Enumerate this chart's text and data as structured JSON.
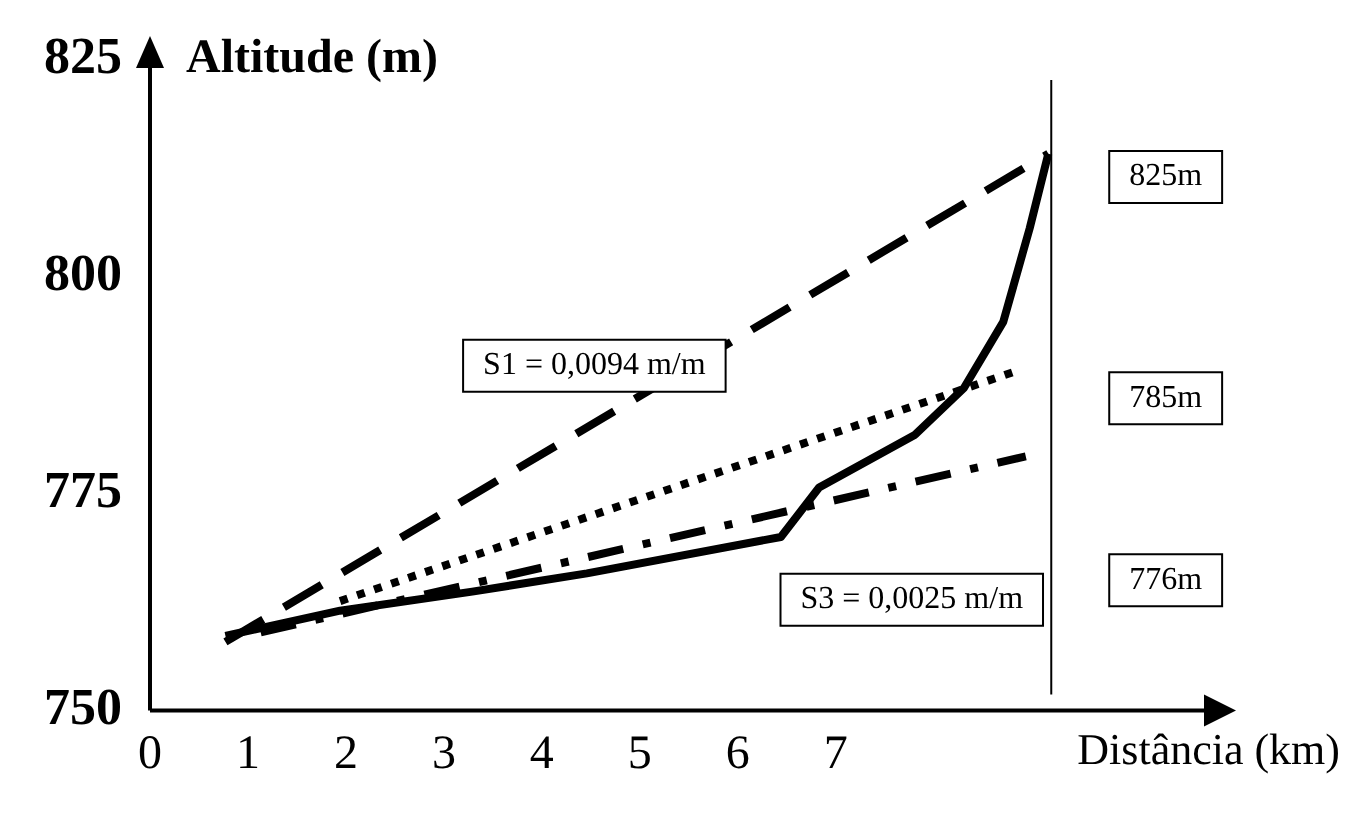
{
  "chart_data": {
    "type": "line",
    "xlabel": "Distância (km)",
    "ylabel": "Altitude (m)",
    "xlim": [
      0,
      10.8
    ],
    "xticks": [
      0,
      1,
      2,
      3,
      4,
      5,
      6,
      7
    ],
    "ylim": [
      750,
      825
    ],
    "yticks": [
      750,
      775,
      800,
      825
    ],
    "grid": false,
    "legend": false,
    "marker": "none",
    "series": [
      {
        "color": "#000000",
        "line_style": "solid",
        "x": [
          0.77,
          1.94,
          3.29,
          4.46,
          6.44,
          6.83,
          7.81,
          8.31,
          8.71,
          8.98,
          9.17
        ],
        "values": [
          758.6,
          761.5,
          763.7,
          765.8,
          770.0,
          775.7,
          781.8,
          787.2,
          794.8,
          805.6,
          814.2
        ]
      },
      {
        "color": "#000000",
        "line_style": "dashed",
        "x": [
          0.77,
          9.17
        ],
        "values": [
          757.9,
          814.2
        ]
      },
      {
        "color": "#000000",
        "line_style": "dotted",
        "x": [
          1.94,
          8.81
        ],
        "values": [
          762.6,
          789.0
        ]
      },
      {
        "color": "#000000",
        "line_style": "dashdot",
        "x": [
          1.13,
          8.94
        ],
        "values": [
          759.0,
          779.3
        ]
      }
    ],
    "ref_lines": [
      {
        "axis": "x",
        "value": 9.2,
        "color": "#000000"
      }
    ],
    "annotations": [
      "S1 = 0,0094 m/m",
      "S3 = 0,0025 m/m",
      "825m",
      "785m",
      "776m"
    ]
  }
}
